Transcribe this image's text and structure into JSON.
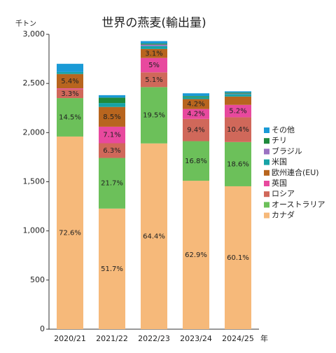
{
  "chart_data": {
    "type": "stacked_bar",
    "title": "世界の燕麦(輸出量)",
    "y_label": "千トン",
    "x_label": "年",
    "categories": [
      "2020/21",
      "2021/22",
      "2022/23",
      "2023/24",
      "2024/25"
    ],
    "ylim": [
      0,
      3000
    ],
    "yticks": [
      0,
      500,
      {
        "value": 1000,
        "label": "1,000"
      },
      {
        "value": 1500,
        "label": "1,500"
      },
      {
        "value": 2000,
        "label": "2,000"
      },
      {
        "value": 2500,
        "label": "2,500"
      },
      {
        "value": 3000,
        "label": "3,000"
      }
    ],
    "series": [
      {
        "name": "カナダ",
        "color": "#f6b97a",
        "values": [
          1960,
          1227,
          1890,
          1510,
          1454
        ],
        "labels": [
          "72.6%",
          "51.7%",
          "64.4%",
          "62.9%",
          "60.1%"
        ]
      },
      {
        "name": "オーストラリア",
        "color": "#6cc05a",
        "values": [
          391,
          515,
          573,
          403,
          450
        ],
        "labels": [
          "14.5%",
          "21.7%",
          "19.5%",
          "16.8%",
          "18.6%"
        ]
      },
      {
        "name": "ロシア",
        "color": "#d0685a",
        "values": [
          89,
          150,
          150,
          226,
          252
        ],
        "labels": [
          "3.3%",
          "6.3%",
          "5.1%",
          "9.4%",
          "10.4%"
        ]
      },
      {
        "name": "英国",
        "color": "#e8499e",
        "values": [
          10,
          168,
          147,
          101,
          126
        ],
        "labels": [
          null,
          "7.1%",
          "5%",
          "4.2%",
          "5.2%"
        ]
      },
      {
        "name": "欧州連合(EU)",
        "color": "#b8651e",
        "values": [
          146,
          201,
          91,
          101,
          85
        ],
        "labels": [
          "5.4%",
          "8.5%",
          "3.1%",
          "4.2%",
          null
        ]
      },
      {
        "name": "米国",
        "color": "#17a3a6",
        "values": [
          20,
          40,
          30,
          20,
          25
        ],
        "labels": [
          null,
          null,
          null,
          null,
          null
        ]
      },
      {
        "name": "ブラジル",
        "color": "#9b72c2",
        "values": [
          null,
          null,
          15,
          null,
          5
        ],
        "labels": [
          null,
          null,
          null,
          null,
          null
        ]
      },
      {
        "name": "チリ",
        "color": "#1f8a3c",
        "values": [
          null,
          55,
          10,
          10,
          10
        ],
        "labels": [
          null,
          null,
          null,
          null,
          null
        ]
      },
      {
        "name": "その他",
        "color": "#1a9ad6",
        "values": [
          84,
          25,
          25,
          29,
          13
        ],
        "labels": [
          null,
          null,
          null,
          null,
          null
        ]
      }
    ]
  }
}
